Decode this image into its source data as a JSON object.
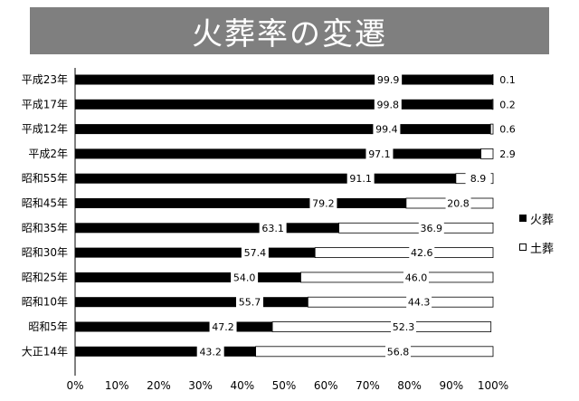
{
  "chart_data": {
    "type": "bar",
    "orientation": "horizontal",
    "stacked": "percent",
    "title": "火葬率の変遷",
    "categories": [
      "平成23年",
      "平成17年",
      "平成12年",
      "平成2年",
      "昭和55年",
      "昭和45年",
      "昭和35年",
      "昭和30年",
      "昭和25年",
      "昭和10年",
      "昭和5年",
      "大正14年"
    ],
    "series": [
      {
        "name": "火葬",
        "color": "#000000",
        "values": [
          99.9,
          99.8,
          99.4,
          97.1,
          91.1,
          79.2,
          63.1,
          57.4,
          54.0,
          55.7,
          47.2,
          43.2
        ],
        "labels": [
          "99.9",
          "99.8",
          "99.4",
          "97.1",
          "91.1",
          "79.2",
          "63.1",
          "57.4",
          "54.0",
          "55.7",
          "47.2",
          "43.2"
        ]
      },
      {
        "name": "土葬",
        "color": "#ffffff",
        "values": [
          0.1,
          0.2,
          0.6,
          2.9,
          8.9,
          20.8,
          36.9,
          42.6,
          46.0,
          44.3,
          52.3,
          56.8
        ],
        "labels": [
          "0.1",
          "0.2",
          "0.6",
          "2.9",
          "8.9",
          "20.8",
          "36.9",
          "42.6",
          "46.0",
          "44.3",
          "52.3",
          "56.8"
        ]
      }
    ],
    "xticks": [
      "0%",
      "10%",
      "20%",
      "30%",
      "40%",
      "50%",
      "60%",
      "70%",
      "80%",
      "90%",
      "100%"
    ],
    "xlim": [
      0,
      100
    ],
    "legend_position": "right",
    "grid": false
  }
}
